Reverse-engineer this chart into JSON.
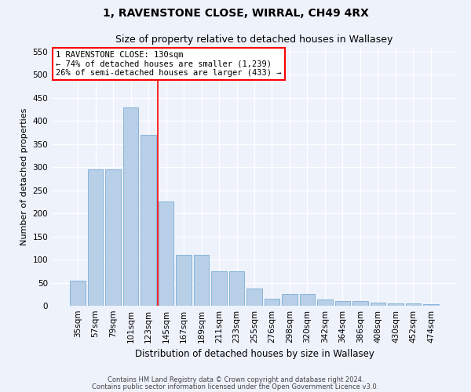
{
  "title": "1, RAVENSTONE CLOSE, WIRRAL, CH49 4RX",
  "subtitle": "Size of property relative to detached houses in Wallasey",
  "xlabel": "Distribution of detached houses by size in Wallasey",
  "ylabel": "Number of detached properties",
  "categories": [
    "35sqm",
    "57sqm",
    "79sqm",
    "101sqm",
    "123sqm",
    "145sqm",
    "167sqm",
    "189sqm",
    "211sqm",
    "233sqm",
    "255sqm",
    "276sqm",
    "298sqm",
    "320sqm",
    "342sqm",
    "364sqm",
    "386sqm",
    "408sqm",
    "430sqm",
    "452sqm",
    "474sqm"
  ],
  "values": [
    55,
    295,
    295,
    430,
    370,
    225,
    110,
    110,
    75,
    75,
    38,
    15,
    25,
    25,
    13,
    10,
    10,
    7,
    5,
    5,
    3
  ],
  "bar_color": "#b8cfe8",
  "bar_edge_color": "#7aadd4",
  "property_line_x": 4.55,
  "annotation_text": "1 RAVENSTONE CLOSE: 130sqm\n← 74% of detached houses are smaller (1,239)\n26% of semi-detached houses are larger (433) →",
  "annotation_box_color": "white",
  "annotation_box_edge_color": "red",
  "ylim": [
    0,
    560
  ],
  "yticks": [
    0,
    50,
    100,
    150,
    200,
    250,
    300,
    350,
    400,
    450,
    500,
    550
  ],
  "background_color": "#eef2fb",
  "grid_color": "white",
  "footer_line1": "Contains HM Land Registry data © Crown copyright and database right 2024.",
  "footer_line2": "Contains public sector information licensed under the Open Government Licence v3.0.",
  "title_fontsize": 10,
  "subtitle_fontsize": 9,
  "xlabel_fontsize": 8.5,
  "ylabel_fontsize": 8,
  "tick_fontsize": 7.5,
  "annotation_fontsize": 7.5
}
